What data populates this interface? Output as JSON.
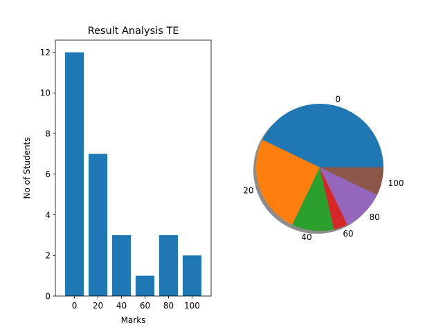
{
  "chart_data": [
    {
      "type": "bar",
      "title": "Result Analysis TE",
      "xlabel": "Marks",
      "ylabel": "No of Students",
      "categories": [
        "0",
        "20",
        "40",
        "60",
        "80",
        "100"
      ],
      "values": [
        12,
        7,
        3,
        1,
        3,
        2
      ],
      "ylim": [
        0,
        12.6
      ],
      "yticks": [
        "0",
        "2",
        "4",
        "6",
        "8",
        "10",
        "12"
      ],
      "color": "#1f77b4",
      "grid": false
    },
    {
      "type": "pie",
      "labels": [
        "0",
        "20",
        "40",
        "60",
        "80",
        "100"
      ],
      "values": [
        12,
        7,
        3,
        1,
        3,
        2
      ],
      "colors": [
        "#1f77b4",
        "#ff7f0e",
        "#2ca02c",
        "#d62728",
        "#9467bd",
        "#8c564b"
      ],
      "shadow": true
    }
  ]
}
